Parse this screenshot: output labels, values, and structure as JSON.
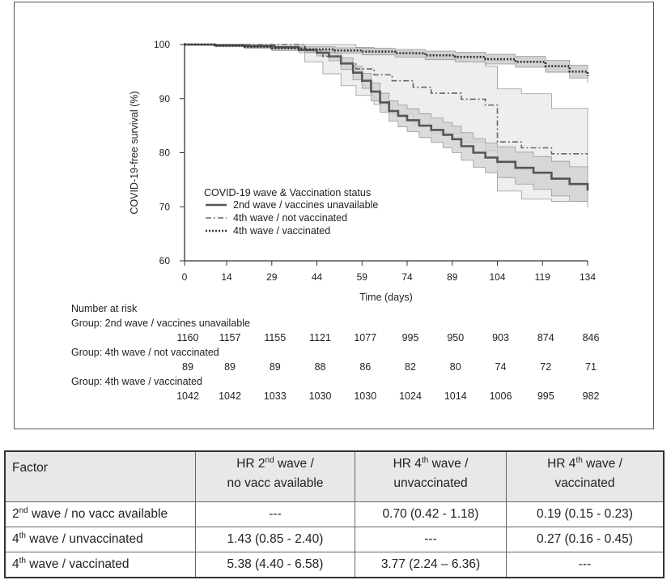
{
  "chart_data": {
    "type": "line",
    "subtype": "kaplan-meier survival",
    "xlabel": "Time (days)",
    "ylabel": "COVID-19-free survival (%)",
    "x_ticks": [
      0,
      14,
      29,
      44,
      59,
      74,
      89,
      104,
      119,
      134
    ],
    "y_ticks": [
      60,
      70,
      80,
      90,
      100
    ],
    "xlim": [
      0,
      134
    ],
    "ylim": [
      60,
      100
    ],
    "legend_title": "COVID-19 wave & Vaccination status",
    "legend_position": "lower-left",
    "series": [
      {
        "name": "2nd wave / vaccines unavailable",
        "style": "solid",
        "x": [
          0,
          10,
          20,
          30,
          38,
          44,
          48,
          52,
          56,
          59,
          62,
          65,
          68,
          71,
          74,
          78,
          82,
          86,
          89,
          92,
          96,
          100,
          104,
          110,
          116,
          122,
          128,
          134
        ],
        "y": [
          100,
          99.9,
          99.7,
          99.5,
          99.0,
          98.5,
          97.8,
          96.5,
          94.8,
          93.3,
          91.3,
          89.3,
          87.7,
          86.8,
          86.0,
          85.0,
          84.2,
          83.3,
          82.5,
          81.2,
          80.0,
          79.1,
          78.3,
          77.2,
          76.3,
          75.2,
          74.2,
          73.0
        ],
        "ci_upper": [
          100,
          100,
          99.8,
          99.7,
          99.4,
          99.0,
          98.5,
          97.5,
          96.0,
          94.7,
          92.9,
          91.0,
          89.6,
          88.8,
          88.1,
          87.2,
          86.4,
          85.6,
          84.9,
          83.7,
          82.6,
          81.8,
          81.1,
          80.1,
          79.3,
          78.4,
          77.4,
          76.2
        ],
        "ci_lower": [
          100,
          99.7,
          99.5,
          99.2,
          98.5,
          97.9,
          97.0,
          95.4,
          93.5,
          91.9,
          89.6,
          87.5,
          85.8,
          84.8,
          83.9,
          82.8,
          81.9,
          80.9,
          80.0,
          78.6,
          77.3,
          76.3,
          75.4,
          74.2,
          73.2,
          72.0,
          71.0,
          69.8
        ]
      },
      {
        "name": "4th wave / not vaccinated",
        "style": "dashdot",
        "x": [
          0,
          33,
          40,
          46,
          52,
          57,
          63,
          69,
          76,
          82,
          92,
          100,
          104,
          112,
          122,
          134
        ],
        "y": [
          100,
          100,
          98.9,
          97.8,
          96.6,
          95.5,
          94.4,
          93.3,
          92.1,
          91.0,
          89.9,
          88.8,
          82.0,
          80.9,
          79.8,
          79.8
        ],
        "ci_upper": [
          100,
          100,
          100,
          100,
          100,
          99.5,
          99.2,
          98.8,
          98.2,
          97.5,
          96.8,
          96.0,
          91.8,
          90.9,
          88.2,
          88.2
        ],
        "ci_lower": [
          100,
          100,
          96.8,
          94.6,
          92.4,
          90.6,
          88.9,
          87.1,
          85.3,
          83.6,
          82.0,
          80.4,
          72.9,
          71.4,
          71.0,
          71.0
        ]
      },
      {
        "name": "4th wave / vaccinated",
        "style": "dotted",
        "x": [
          0,
          10,
          20,
          29,
          40,
          50,
          59,
          70,
          80,
          90,
          100,
          110,
          120,
          128,
          134
        ],
        "y": [
          100,
          99.8,
          99.6,
          99.3,
          99.1,
          98.9,
          98.7,
          98.4,
          98.0,
          97.7,
          97.3,
          96.8,
          96.0,
          95.0,
          94.2
        ],
        "ci_upper": [
          100,
          100,
          99.9,
          99.7,
          99.6,
          99.4,
          99.3,
          99.1,
          98.8,
          98.6,
          98.2,
          97.8,
          97.1,
          96.2,
          95.5
        ],
        "ci_lower": [
          100,
          99.6,
          99.3,
          98.9,
          98.6,
          98.4,
          98.1,
          97.7,
          97.2,
          96.8,
          96.4,
          95.8,
          94.9,
          93.8,
          92.9
        ]
      }
    ]
  },
  "risk_table": {
    "title": "Number at risk",
    "groups": [
      {
        "label": "Group: 2nd wave / vaccines unavailable",
        "values": [
          1160,
          1157,
          1155,
          1121,
          1077,
          995,
          950,
          903,
          874,
          846
        ]
      },
      {
        "label": "Group: 4th wave / not vaccinated",
        "values": [
          89,
          89,
          89,
          88,
          86,
          82,
          80,
          74,
          72,
          71
        ]
      },
      {
        "label": "Group: 4th wave / vaccinated",
        "values": [
          1042,
          1042,
          1033,
          1030,
          1030,
          1024,
          1014,
          1006,
          995,
          982
        ]
      }
    ]
  },
  "hr_table": {
    "factor_header": "Factor",
    "columns": [
      {
        "pre": "HR 2",
        "sup": "nd",
        "post": " wave /",
        "line2": "no vacc available"
      },
      {
        "pre": "HR 4",
        "sup": "th",
        "post": " wave /",
        "line2": "unvaccinated"
      },
      {
        "pre": "HR 4",
        "sup": "th",
        "post": " wave /",
        "line2": "vaccinated"
      }
    ],
    "rows": [
      {
        "pre": "2",
        "sup": "nd",
        "post": " wave / no vacc available",
        "cells": [
          "---",
          "0.70 (0.42 - 1.18)",
          "0.19 (0.15 - 0.23)"
        ]
      },
      {
        "pre": "4",
        "sup": "th",
        "post": " wave / unvaccinated",
        "cells": [
          "1.43 (0.85 - 2.40)",
          "---",
          "0.27 (0.16 - 0.45)"
        ]
      },
      {
        "pre": "4",
        "sup": "th",
        "post": " wave / vaccinated",
        "cells": [
          "5.38 (4.40 - 6.58)",
          "3.77 (2.24 – 6.36)",
          "---"
        ]
      }
    ]
  }
}
